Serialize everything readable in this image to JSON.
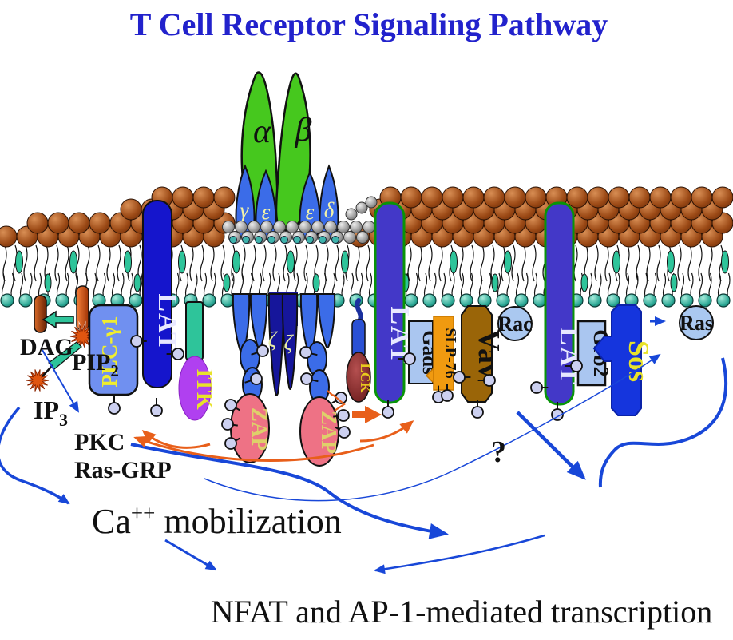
{
  "title": {
    "text": "T Cell Receptor Signaling Pathway"
  },
  "receptor": {
    "alpha": "α",
    "beta": "β",
    "gamma": "γ",
    "epsilon_left": "ε",
    "epsilon_right": "ε",
    "delta": "δ",
    "zeta_left": "ζ",
    "zeta_right": "ζ"
  },
  "proteins": {
    "plc_gamma1": "PLC-γ1",
    "lat_left": "LAT",
    "lat_middle": "LAT",
    "lat_right": "LAT",
    "itk": "ITK",
    "lck": "LCK",
    "zap_left": "ZAP",
    "zap_right": "ZAP",
    "gads": "Gads",
    "slp76": "SLP-76",
    "vav": "Vav",
    "rac": "Rac",
    "grb2": "Grb2",
    "sos": "Sos",
    "ras": "Ras"
  },
  "molecules": {
    "dag": "DAG",
    "pip2_base": "PIP",
    "pip2_sub": "2",
    "ip3_base": "IP",
    "ip3_sub": "3",
    "pkc": "PKC",
    "ras_grp": "Ras-GRP"
  },
  "annotations": {
    "ca_base": "Ca",
    "ca_sup": "++",
    "ca_rest": " mobilization",
    "question_mark": "?",
    "outcome": "NFAT and AP-1-mediated transcription"
  },
  "colors": {
    "title": "#2222cc",
    "arrow_blue": "#1847d8",
    "arrow_orange": "#e85f1a",
    "tcr_alpha_beta": "#46c81e",
    "cd3_blue": "#3b6ce8",
    "zeta_navy": "#16169b",
    "plc_fill": "#7090f0",
    "lat_fill": "#1515cc",
    "lat_raft_fill": "#4338c8",
    "lat_raft_border": "#089408",
    "itk_fill": "#b040f0",
    "zap_fill": "#ee7285",
    "gads_fill": "#aac6f0",
    "slp76_fill": "#f09a10",
    "vav_fill": "#9a6508",
    "rac_fill": "#aac8f0",
    "grb2_fill": "#aac6f0",
    "sos_fill": "#1535dd",
    "ras_fill": "#aac8f0",
    "green_accent": "#2ec49a",
    "label_yellow": "#e8e22a"
  }
}
